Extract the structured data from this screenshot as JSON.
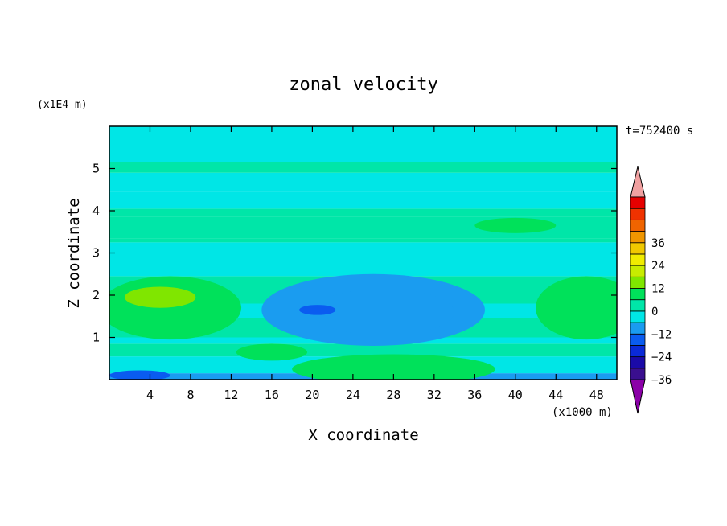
{
  "chart_data": {
    "type": "heatmap",
    "title": "zonal velocity",
    "xlabel": "X coordinate",
    "ylabel": "Z coordinate",
    "x_unit": "(x1000 m)",
    "y_unit": "(x1E4 m)",
    "time_label": "t=752400 s",
    "xlim": [
      0,
      50
    ],
    "ylim": [
      0,
      6
    ],
    "x_ticks": [
      "4",
      "8",
      "12",
      "16",
      "20",
      "24",
      "28",
      "32",
      "36",
      "40",
      "44",
      "48"
    ],
    "y_ticks": [
      "1",
      "2",
      "3",
      "4",
      "5"
    ],
    "colorbar": {
      "min": -42,
      "max": 42,
      "step": 6,
      "tick_labels": [
        "36",
        "24",
        "12",
        "0",
        "−12",
        "−24",
        "−36"
      ],
      "colors": [
        "#8b00a8",
        "#3a0f8f",
        "#1a0aa8",
        "#0a2ad8",
        "#0a5cf0",
        "#1a9cf0",
        "#00e6e6",
        "#00e6a8",
        "#00e15a",
        "#80e600",
        "#c8ec00",
        "#f0ec00",
        "#f0c800",
        "#f09600",
        "#f06400",
        "#f03200",
        "#e60000",
        "#f0a0a0"
      ]
    },
    "bands": [
      {
        "z": [
          0.0,
          0.15
        ],
        "value": -10
      },
      {
        "z": [
          0.15,
          0.55
        ],
        "value": -4
      },
      {
        "z": [
          0.55,
          0.85
        ],
        "value": 2
      },
      {
        "z": [
          0.85,
          1.0
        ],
        "value": -4
      },
      {
        "z": [
          1.0,
          1.45
        ],
        "value": 2
      },
      {
        "z": [
          1.45,
          1.8
        ],
        "value": -4
      },
      {
        "z": [
          1.8,
          2.45
        ],
        "value": 2
      },
      {
        "z": [
          2.45,
          2.8
        ],
        "value": -4
      },
      {
        "z": [
          2.8,
          3.25
        ],
        "value": -2
      },
      {
        "z": [
          3.25,
          3.35
        ],
        "value": 2
      },
      {
        "z": [
          3.35,
          3.85
        ],
        "value": 5
      },
      {
        "z": [
          3.85,
          4.05
        ],
        "value": 2
      },
      {
        "z": [
          4.05,
          4.45
        ],
        "value": -4
      },
      {
        "z": [
          4.45,
          4.9
        ],
        "value": -2
      },
      {
        "z": [
          4.9,
          5.15
        ],
        "value": 2
      },
      {
        "z": [
          5.15,
          6.0
        ],
        "value": -1
      }
    ],
    "blobs": [
      {
        "x": 6,
        "z": 1.7,
        "rx": 7,
        "rz": 0.75,
        "value": 8
      },
      {
        "x": 5,
        "z": 1.95,
        "rx": 3.5,
        "rz": 0.25,
        "value": 12
      },
      {
        "x": 47,
        "z": 1.7,
        "rx": 5,
        "rz": 0.75,
        "value": 7
      },
      {
        "x": 26,
        "z": 1.65,
        "rx": 11,
        "rz": 0.85,
        "value": -8
      },
      {
        "x": 27,
        "z": 1.6,
        "rx": 7,
        "rz": 0.55,
        "value": -11
      },
      {
        "x": 20.5,
        "z": 1.65,
        "rx": 1.8,
        "rz": 0.12,
        "value": -17
      },
      {
        "x": 28,
        "z": 0.25,
        "rx": 10,
        "rz": 0.35,
        "value": 6
      },
      {
        "x": 16,
        "z": 0.65,
        "rx": 3.5,
        "rz": 0.2,
        "value": 7
      },
      {
        "x": 40,
        "z": 3.65,
        "rx": 4,
        "rz": 0.18,
        "value": 9
      },
      {
        "x": 3,
        "z": 0.1,
        "rx": 3,
        "rz": 0.12,
        "value": -16
      }
    ]
  }
}
